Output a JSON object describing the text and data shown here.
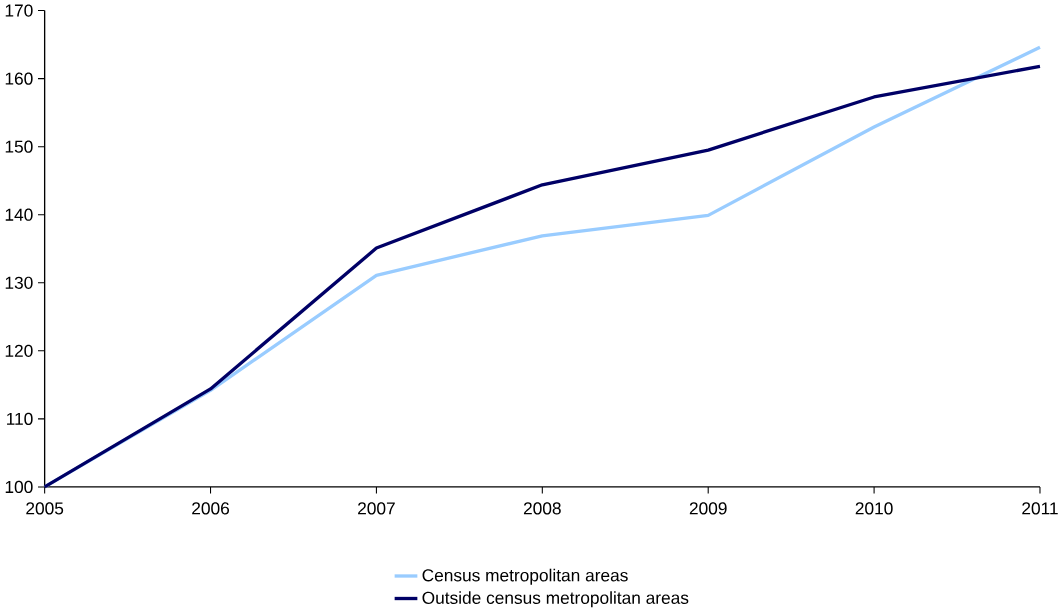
{
  "chart_data": {
    "type": "line",
    "x": [
      2005,
      2006,
      2007,
      2008,
      2009,
      2010,
      2011
    ],
    "xlim": [
      2005,
      2011
    ],
    "xticks": [
      2005,
      2006,
      2007,
      2008,
      2009,
      2010,
      2011
    ],
    "ylim": [
      100,
      170
    ],
    "yticks": [
      100,
      110,
      120,
      130,
      140,
      150,
      160,
      170
    ],
    "grid": false,
    "legend": "bottom",
    "marker": "none",
    "line_style": "solid",
    "series": [
      {
        "name": "Census metropolitan areas",
        "color": "#99ccff",
        "values": [
          100,
          114.2,
          131.1,
          136.9,
          139.9,
          152.9,
          164.6
        ]
      },
      {
        "name": "Outside census metropolitan areas",
        "color": "#000066",
        "values": [
          100,
          114.4,
          135.1,
          144.4,
          149.5,
          157.3,
          161.8
        ]
      }
    ]
  }
}
